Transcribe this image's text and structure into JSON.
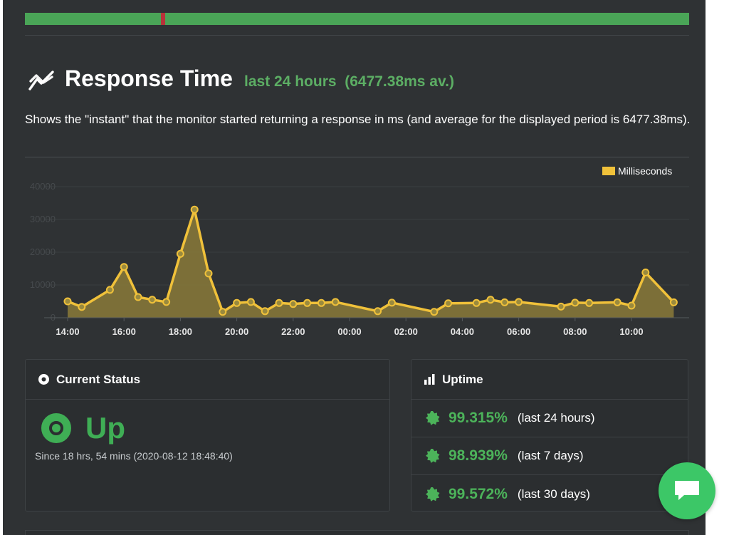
{
  "section": {
    "title": "Response Time",
    "subtitle": "last 24 hours  (6477.38ms av.)",
    "description": "Shows the \"instant\" that the monitor started returning a response in ms (and average for the displayed period is 6477.38ms)."
  },
  "colors": {
    "panel_bg": "#2f3234",
    "accent_green": "#4cb35a",
    "series_yellow": "#f0c13a",
    "status_bar_green": "#4aa557",
    "status_bar_tick_red": "#b8323a"
  },
  "chart_data": {
    "type": "area",
    "legend": [
      "Milliseconds"
    ],
    "legend_position": "top-right",
    "grid": true,
    "ylim": [
      0,
      40000
    ],
    "yticks": [
      "0",
      "10000",
      "20000",
      "30000",
      "40000"
    ],
    "xticks": [
      "14:00",
      "16:00",
      "18:00",
      "20:00",
      "22:00",
      "00:00",
      "02:00",
      "04:00",
      "06:00",
      "08:00",
      "10:00"
    ],
    "series": [
      {
        "name": "Milliseconds",
        "x_hours": [
          14.0,
          14.5,
          15.5,
          16.0,
          16.5,
          17.0,
          17.5,
          18.0,
          18.5,
          19.0,
          19.5,
          20.0,
          20.5,
          21.0,
          21.5,
          22.0,
          22.5,
          23.0,
          23.5,
          25.0,
          25.5,
          27.0,
          27.5,
          28.5,
          29.0,
          29.5,
          30.0,
          31.5,
          32.0,
          32.5,
          33.5,
          34.0,
          34.5,
          35.5
        ],
        "values": [
          5000,
          3300,
          8500,
          15500,
          6300,
          5500,
          4800,
          19500,
          33000,
          13500,
          1800,
          4500,
          4800,
          2000,
          4500,
          4200,
          4500,
          4500,
          4800,
          2000,
          4600,
          1800,
          4400,
          4500,
          5500,
          4700,
          4800,
          3400,
          4600,
          4500,
          4700,
          3700,
          13800,
          4700
        ]
      }
    ]
  },
  "status_card": {
    "title": "Current Status",
    "state": "Up",
    "since": "Since 18 hrs, 54 mins (2020-08-12 18:48:40)"
  },
  "uptime_card": {
    "title": "Uptime",
    "rows": [
      {
        "pct": "99.315%",
        "period": "(last 24 hours)"
      },
      {
        "pct": "98.939%",
        "period": "(last 7 days)"
      },
      {
        "pct": "99.572%",
        "period": "(last 30 days)"
      }
    ]
  },
  "icons": {
    "title": "chart-line-icon",
    "status": "dot-circle-icon",
    "uptime": "bar-chart-icon",
    "badge": "certificate-badge-icon",
    "chat": "chat-bubble-icon"
  }
}
